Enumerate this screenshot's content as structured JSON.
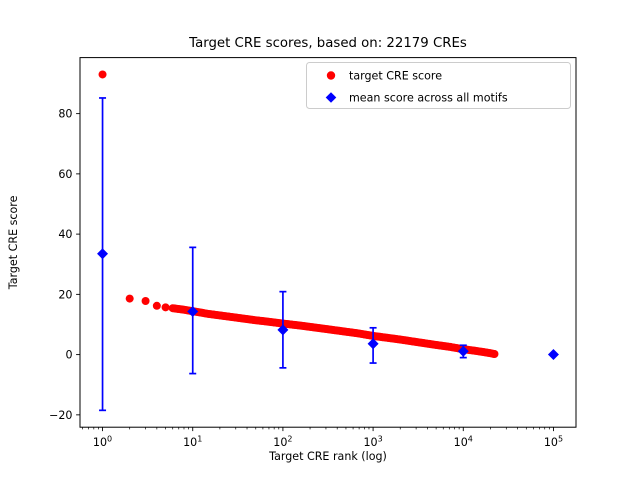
{
  "chart_data": {
    "type": "scatter",
    "title": "Target CRE scores, based on: 22179 CREs",
    "xlabel": "Target CRE rank (log)",
    "ylabel": "Target CRE score",
    "x_scale": "log10",
    "x_range_log10": [
      -0.25,
      5.25
    ],
    "ylim": [
      -24.1,
      98.6
    ],
    "x_tick_exponents": [
      0,
      1,
      2,
      3,
      4,
      5
    ],
    "y_ticks": [
      -20,
      0,
      20,
      40,
      60,
      80
    ],
    "n_cres": 22179,
    "grid": "off",
    "colors": {
      "target_points": "#ff0000",
      "mean_points": "#0000ff",
      "legend_edge": "#cccccc"
    },
    "series": [
      {
        "name": "target CRE score",
        "marker": "circle",
        "color": "#ff0000",
        "discrete_points": [
          [
            1,
            93
          ],
          [
            2,
            18.6
          ],
          [
            3,
            17.8
          ],
          [
            4,
            16.2
          ],
          [
            5,
            15.7
          ]
        ],
        "curve_samples": [
          [
            5,
            15.7
          ],
          [
            6,
            15.4
          ],
          [
            8,
            14.9
          ],
          [
            10,
            14.4
          ],
          [
            15,
            13.5
          ],
          [
            20,
            13.0
          ],
          [
            30,
            12.3
          ],
          [
            50,
            11.4
          ],
          [
            70,
            10.9
          ],
          [
            100,
            10.3
          ],
          [
            150,
            9.7
          ],
          [
            200,
            9.2
          ],
          [
            300,
            8.5
          ],
          [
            500,
            7.6
          ],
          [
            700,
            7.0
          ],
          [
            1000,
            6.2
          ],
          [
            1500,
            5.5
          ],
          [
            2000,
            5.0
          ],
          [
            3000,
            4.2
          ],
          [
            5000,
            3.2
          ],
          [
            7000,
            2.6
          ],
          [
            10000,
            1.8
          ],
          [
            14000,
            1.2
          ],
          [
            18000,
            0.7
          ],
          [
            22179,
            0.2
          ]
        ]
      },
      {
        "name": "mean score across all motifs",
        "marker": "diamond",
        "color": "#0000ff",
        "x": [
          1,
          10,
          100,
          1000,
          10000,
          100000
        ],
        "mean": [
          33.5,
          14.3,
          8.2,
          3.6,
          1.1,
          0.05
        ],
        "err_low": [
          -18.5,
          -6.3,
          -4.4,
          -2.8,
          -1.0,
          -0.1
        ],
        "err_high": [
          85.2,
          35.6,
          20.9,
          8.9,
          3.1,
          0.2
        ]
      }
    ],
    "legend": {
      "position": "upper right",
      "entries": [
        "target CRE score",
        "mean score across all motifs"
      ]
    }
  }
}
